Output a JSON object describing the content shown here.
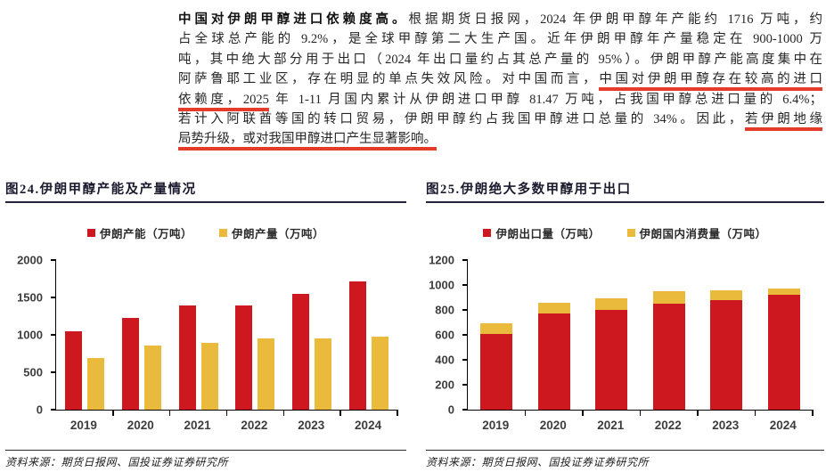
{
  "colors": {
    "bar_red": "#ce181f",
    "bar_gold": "#e9ba3c",
    "highlight_underline_red": "#e43b2a"
  },
  "paragraph": {
    "lines": [
      {
        "segments": [
          {
            "text": "中国对伊朗甲醇进口依赖度高。"
          },
          {
            "text": "根据期货日报网，2024 年伊朗甲醇年产能约 1716 万吨，约"
          }
        ]
      },
      {
        "segments": [
          {
            "text": "占全球总产能的 9.2%，是全球甲醇第二大生产国。近年伊朗甲醇年产量稳定在 900-1000 万"
          }
        ]
      },
      {
        "segments": [
          {
            "text": "吨，其中绝大部分用于出口（2024 年出口量约占其总产量的 95%）。伊朗甲醇产能高度集中在"
          }
        ]
      },
      {
        "segments": [
          {
            "text": "阿萨鲁耶工业区，存在明显的单点失效风险。对中国而言，"
          },
          {
            "text": "中国对伊朗甲醇存在较高的进口"
          }
        ]
      },
      {
        "segments": [
          {
            "text": "依赖度，2025"
          },
          {
            "text": " 年 1-11 月国内累计从伊朗进口甲醇 81.47 万吨，占我国甲醇总进口量的 6.4%；"
          }
        ]
      },
      {
        "segments": [
          {
            "text": "若计入阿联酋等国的转口贸易，伊朗甲醇约占我国甲醇进口总量的 34%。因此，"
          },
          {
            "text": "若伊朗地缘"
          }
        ]
      },
      {
        "segments": [
          {
            "text": "局势升级，或对我国甲醇进口产生显著影响。"
          }
        ]
      }
    ]
  },
  "sources": [
    "资料来源：期货日报网、国投证券证券研究所",
    "资料来源：期货日报网、国投证券证券研究所"
  ],
  "chart_data": [
    {
      "type": "bar",
      "title": "图24.伊朗甲醇产能及产量情况",
      "categories": [
        "2019",
        "2020",
        "2021",
        "2022",
        "2023",
        "2024"
      ],
      "series": [
        {
          "name": "伊朗产能（万吨）",
          "color": "#ce181f",
          "values": [
            1050,
            1225,
            1390,
            1390,
            1550,
            1716
          ]
        },
        {
          "name": "伊朗产量（万吨）",
          "color": "#e9ba3c",
          "values": [
            690,
            855,
            890,
            950,
            955,
            975
          ]
        }
      ],
      "stacked": false,
      "ylabel": "",
      "xlabel": "",
      "ylim": [
        0,
        2000
      ],
      "yticks": [
        0,
        500,
        1000,
        1500,
        2000
      ],
      "grid": false,
      "legend_position": "top"
    },
    {
      "type": "bar",
      "title": "图25.伊朗绝大多数甲醇用于出口",
      "categories": [
        "2019",
        "2020",
        "2021",
        "2022",
        "2023",
        "2024"
      ],
      "series": [
        {
          "name": "伊朗出口量（万吨）",
          "color": "#ce181f",
          "values": [
            610,
            770,
            800,
            850,
            880,
            920
          ]
        },
        {
          "name": "伊朗国内消费量（万吨）",
          "color": "#e9ba3c",
          "values": [
            85,
            85,
            90,
            100,
            80,
            55
          ]
        }
      ],
      "stacked": true,
      "ylabel": "",
      "xlabel": "",
      "ylim": [
        0,
        1200
      ],
      "yticks": [
        0,
        200,
        400,
        600,
        800,
        1000,
        1200
      ],
      "grid": false,
      "legend_position": "top"
    }
  ]
}
